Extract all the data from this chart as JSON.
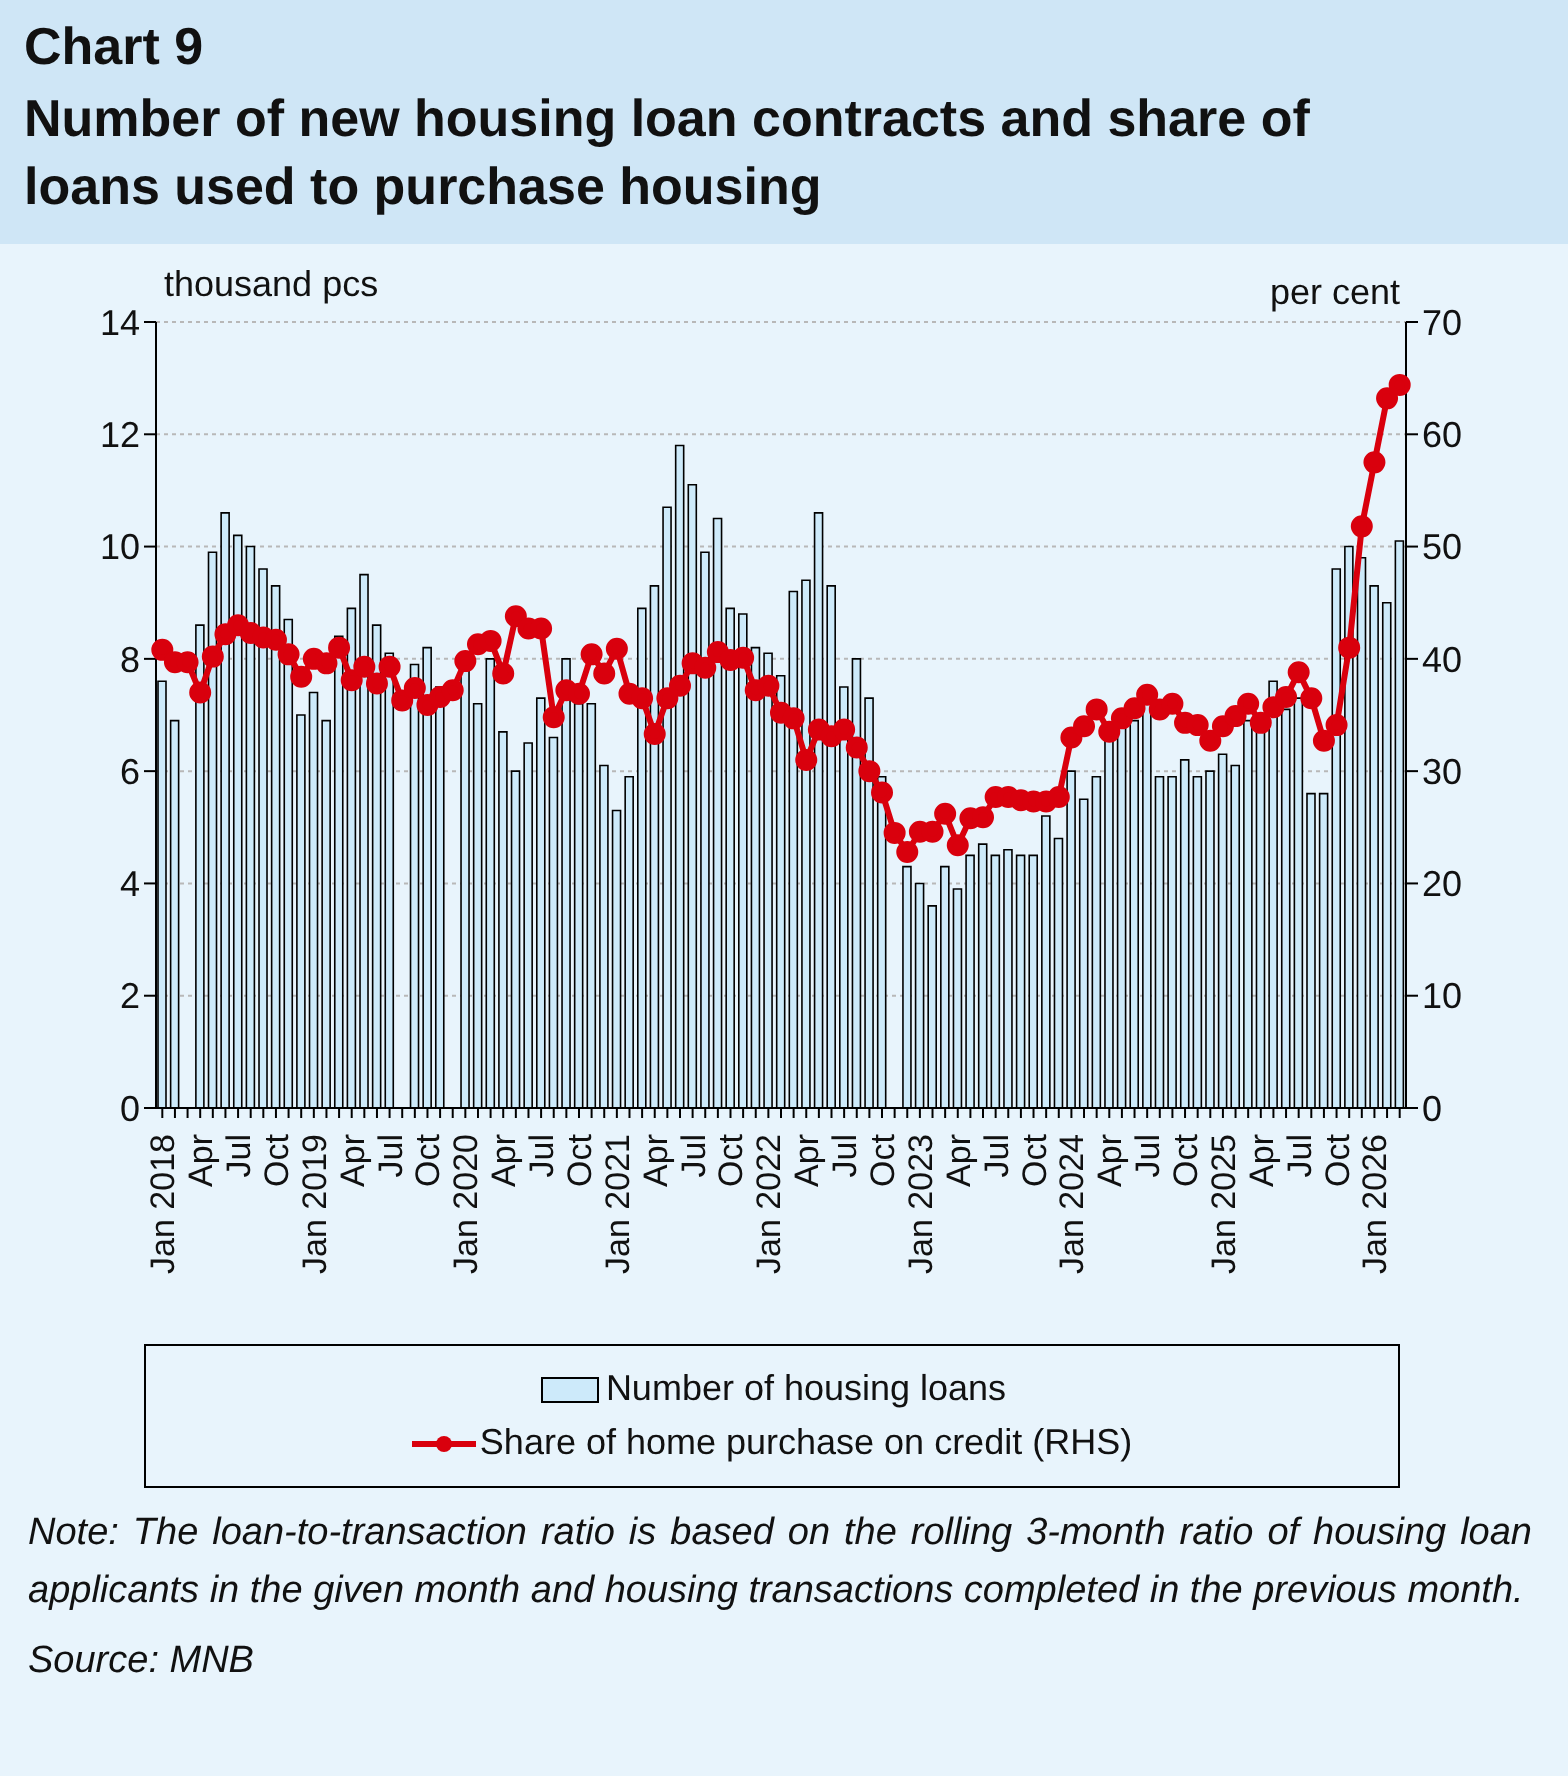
{
  "chart_data": {
    "type": "bar",
    "title": "Chart 9",
    "subtitle": "Number of new housing loan contracts and share of loans used to purchase housing",
    "ylabel": "thousand pcs",
    "y2label": "per cent",
    "categories": [
      "Jan 2018",
      null,
      null,
      "Apr",
      null,
      null,
      "Jul",
      null,
      null,
      "Oct",
      null,
      null,
      "Jan 2019",
      null,
      null,
      "Apr",
      null,
      null,
      "Jul",
      null,
      null,
      "Oct",
      null,
      null,
      "Jan 2020",
      null,
      null,
      "Apr",
      null,
      null,
      "Jul",
      null,
      null,
      "Oct",
      null,
      null,
      "Jan 2021",
      null,
      null,
      "Apr",
      null,
      null,
      "Jul",
      null,
      null,
      "Oct",
      null,
      null,
      "Jan 2022",
      null,
      null,
      "Apr",
      null,
      null,
      "Jul",
      null,
      null,
      "Oct",
      null,
      null,
      "Jan 2023",
      null,
      null,
      "Apr",
      null,
      null,
      "Jul",
      null,
      null,
      "Oct",
      null,
      null,
      "Jan 2024",
      null,
      null,
      "Apr",
      null,
      null,
      "Jul",
      null,
      null,
      "Oct",
      null,
      null,
      "Jan 2025",
      null,
      null,
      "Apr",
      null,
      null,
      "Jul",
      null,
      null,
      "Oct",
      null,
      null,
      "Jan 2026",
      null,
      null
    ],
    "series": [
      {
        "name": "Number of housing loans",
        "color": "#cdeafa",
        "values": [
          7.6,
          6.9,
          null,
          8.6,
          9.9,
          10.6,
          10.2,
          10.0,
          9.6,
          9.3,
          8.7,
          7.0,
          7.4,
          6.9,
          8.4,
          8.9,
          9.5,
          8.6,
          8.1,
          null,
          7.9,
          8.2,
          7.5,
          null,
          7.9,
          7.2,
          8.0,
          6.7,
          6.0,
          6.5,
          7.3,
          6.6,
          8.0,
          7.2,
          7.2,
          6.1,
          5.3,
          5.9,
          8.9,
          9.3,
          10.7,
          11.8,
          11.1,
          9.9,
          10.5,
          8.9,
          8.8,
          8.2,
          8.1,
          7.7,
          9.2,
          9.4,
          10.6,
          9.3,
          7.5,
          8.0,
          7.3,
          5.9,
          null,
          4.3,
          4.0,
          3.6,
          4.3,
          3.9,
          4.5,
          4.7,
          4.5,
          4.6,
          4.5,
          4.5,
          5.2,
          4.8,
          6.0,
          5.5,
          5.9,
          6.6,
          6.8,
          6.9,
          7.2,
          5.9,
          5.9,
          6.2,
          5.9,
          6.0,
          6.3,
          6.1,
          6.9,
          6.8,
          7.6,
          7.1,
          7.3,
          5.6,
          5.6,
          9.6,
          10.0,
          9.8,
          9.3,
          9.0,
          10.1
        ]
      },
      {
        "name": "Share of home purchase on credit (RHS)",
        "type": "line",
        "axis": "y2",
        "color": "#d9000d",
        "values": [
          40.8,
          39.7,
          39.7,
          37.0,
          40.2,
          42.2,
          43.0,
          42.3,
          41.9,
          41.7,
          40.4,
          38.4,
          40.0,
          39.6,
          41.0,
          38.1,
          39.3,
          37.8,
          39.3,
          36.3,
          37.4,
          35.9,
          36.6,
          37.2,
          39.8,
          41.3,
          41.6,
          38.7,
          43.8,
          42.7,
          42.7,
          34.8,
          37.2,
          36.9,
          40.4,
          38.7,
          40.9,
          36.9,
          36.5,
          33.3,
          36.5,
          37.6,
          39.6,
          39.2,
          40.6,
          39.9,
          40.1,
          37.2,
          37.6,
          35.2,
          34.7,
          31.0,
          33.7,
          33.1,
          33.7,
          32.1,
          30.0,
          28.1,
          24.5,
          22.8,
          24.6,
          24.6,
          26.2,
          23.4,
          25.8,
          25.9,
          27.7,
          27.7,
          27.4,
          27.3,
          27.3,
          27.7,
          33.0,
          34.0,
          35.5,
          33.5,
          34.7,
          35.6,
          36.8,
          35.5,
          36.0,
          34.3,
          34.1,
          32.7,
          34.0,
          34.9,
          36.0,
          34.3,
          35.7,
          36.6,
          38.8,
          36.5,
          32.7,
          34.1,
          41.0,
          51.8,
          57.5,
          63.2,
          64.4
        ]
      }
    ],
    "ylim": [
      0,
      14
    ],
    "yticks": [
      0,
      2,
      4,
      6,
      8,
      10,
      12,
      14
    ],
    "y2lim": [
      0,
      70
    ],
    "y2ticks": [
      0,
      10,
      20,
      30,
      40,
      50,
      60,
      70
    ],
    "grid": "y",
    "legend": "bottom",
    "marker": "circle",
    "line_style": "solid",
    "annotations": [
      "Note: The loan-to-transaction ratio is based on the rolling 3-month ratio of housing loan applicants in the given month and housing transactions completed in the previous month.",
      "Source: MNB"
    ]
  }
}
